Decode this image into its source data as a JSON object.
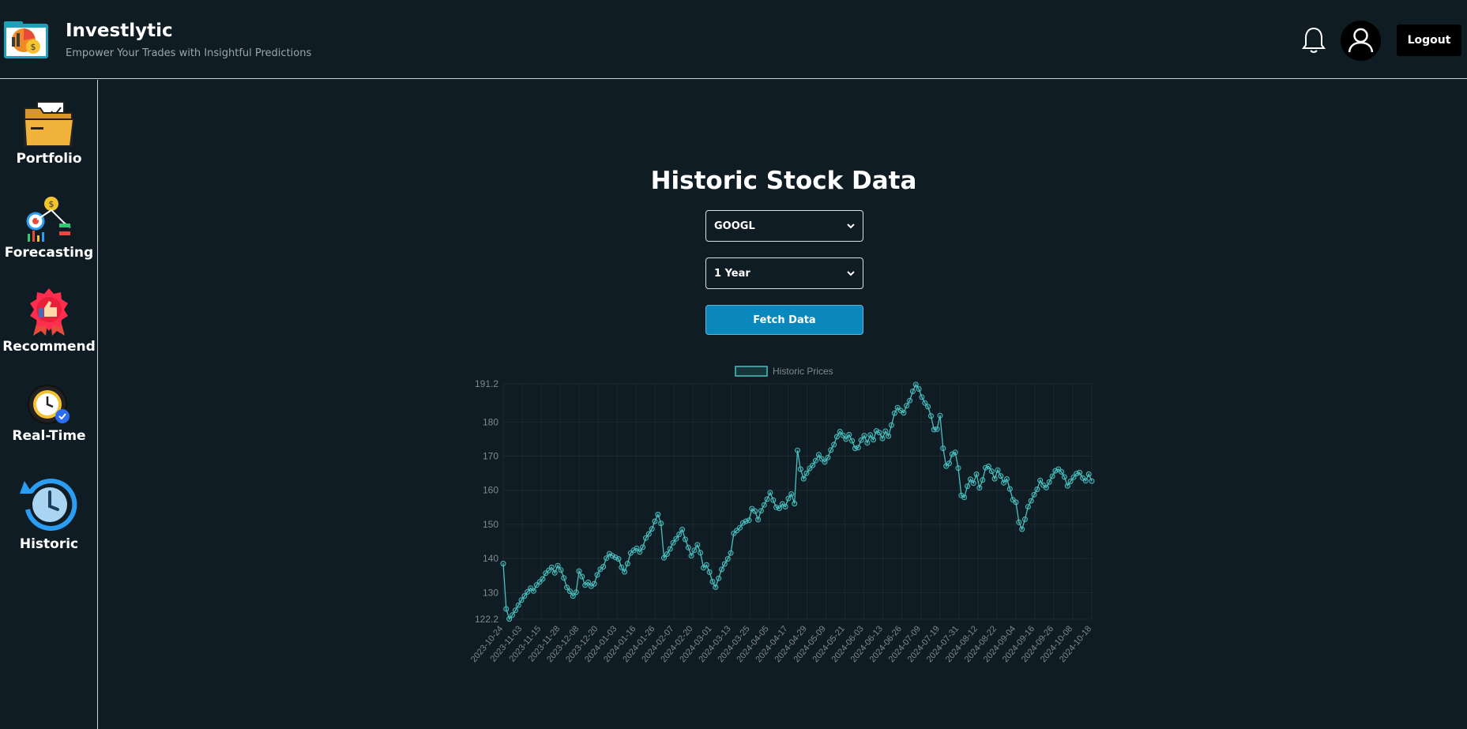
{
  "app": {
    "title": "Investlytic",
    "subtitle": "Empower Your Trades with Insightful Predictions",
    "logout_label": "Logout"
  },
  "sidebar": {
    "items": [
      {
        "label": "Portfolio",
        "icon": "folder-icon"
      },
      {
        "label": "Forecasting",
        "icon": "forecast-icon"
      },
      {
        "label": "Recommend",
        "icon": "thumbs-up-badge-icon"
      },
      {
        "label": "Real-Time",
        "icon": "clock-check-icon"
      },
      {
        "label": "Historic",
        "icon": "history-clock-icon"
      }
    ]
  },
  "main": {
    "title": "Historic Stock Data",
    "ticker_select": "GOOGL",
    "period_select": "1 Year",
    "fetch_label": "Fetch Data"
  },
  "colors": {
    "background": "#0f1c23",
    "accent": "#0a87bd",
    "series": "#4bc0c0"
  },
  "chart_data": {
    "type": "line",
    "legend": [
      "Historic Prices"
    ],
    "legend_position": "top-center",
    "grid": true,
    "ylim": [
      122.2,
      191.2
    ],
    "yticks": [
      "191.2",
      "180",
      "170",
      "160",
      "150",
      "140",
      "130",
      "122.2"
    ],
    "xticks": [
      "2023-10-24",
      "2023-11-03",
      "2023-11-15",
      "2023-11-28",
      "2023-12-08",
      "2023-12-20",
      "2024-01-03",
      "2024-01-16",
      "2024-01-26",
      "2024-02-07",
      "2024-02-20",
      "2024-03-01",
      "2024-03-13",
      "2024-03-25",
      "2024-04-05",
      "2024-04-17",
      "2024-04-29",
      "2024-05-09",
      "2024-05-21",
      "2024-06-03",
      "2024-06-13",
      "2024-06-26",
      "2024-07-09",
      "2024-07-19",
      "2024-07-31",
      "2024-08-12",
      "2024-08-22",
      "2024-09-04",
      "2024-09-16",
      "2024-09-26",
      "2024-10-08",
      "2024-10-18"
    ],
    "series": [
      {
        "name": "Historic Prices",
        "values": [
          138.5,
          125.2,
          122.3,
          123.4,
          124.8,
          126.3,
          127.8,
          129.0,
          130.2,
          131.3,
          130.5,
          132.2,
          133.1,
          134.0,
          135.7,
          136.5,
          137.4,
          135.8,
          137.9,
          136.6,
          134.3,
          131.5,
          130.4,
          129.0,
          130.1,
          136.3,
          134.7,
          132.2,
          133.0,
          131.9,
          132.6,
          135.2,
          136.8,
          137.6,
          140.1,
          141.4,
          140.8,
          140.3,
          139.9,
          137.4,
          136.1,
          138.5,
          141.6,
          142.4,
          143.0,
          141.9,
          143.3,
          146.0,
          147.2,
          148.7,
          150.9,
          152.9,
          150.3,
          140.2,
          141.3,
          142.8,
          144.6,
          145.8,
          147.1,
          148.5,
          145.6,
          143.2,
          140.8,
          142.4,
          144.0,
          141.7,
          137.3,
          138.1,
          136.0,
          133.2,
          131.6,
          134.2,
          136.8,
          138.4,
          139.9,
          141.6,
          147.4,
          148.2,
          149.0,
          150.4,
          150.9,
          151.2,
          154.6,
          153.9,
          151.4,
          154.0,
          155.7,
          157.4,
          159.3,
          157.1,
          155.0,
          154.7,
          156.0,
          155.2,
          157.6,
          158.9,
          156.1,
          171.7,
          166.2,
          163.4,
          165.0,
          166.4,
          167.3,
          168.7,
          170.4,
          169.2,
          168.3,
          169.6,
          171.8,
          173.4,
          175.7,
          177.2,
          176.1,
          175.0,
          176.3,
          174.5,
          172.3,
          172.5,
          174.7,
          176.0,
          173.9,
          176.2,
          174.8,
          177.4,
          176.9,
          175.2,
          177.3,
          175.9,
          179.1,
          182.6,
          184.2,
          183.4,
          182.7,
          184.8,
          186.3,
          189.0,
          191.0,
          189.7,
          187.3,
          185.6,
          184.5,
          181.8,
          177.8,
          177.9,
          181.9,
          172.3,
          167.1,
          167.9,
          170.6,
          171.1,
          166.5,
          158.5,
          157.9,
          161.2,
          163.2,
          162.1,
          164.7,
          160.7,
          163.0,
          166.6,
          167.0,
          165.6,
          163.4,
          165.9,
          164.2,
          162.2,
          163.3,
          160.4,
          157.2,
          156.5,
          150.6,
          148.6,
          151.5,
          155.2,
          156.9,
          158.7,
          160.3,
          162.9,
          161.5,
          160.8,
          162.4,
          164.1,
          165.7,
          166.2,
          165.4,
          163.9,
          161.3,
          162.6,
          163.8,
          164.9,
          165.2,
          163.6,
          162.8,
          164.7,
          162.7
        ]
      }
    ]
  }
}
